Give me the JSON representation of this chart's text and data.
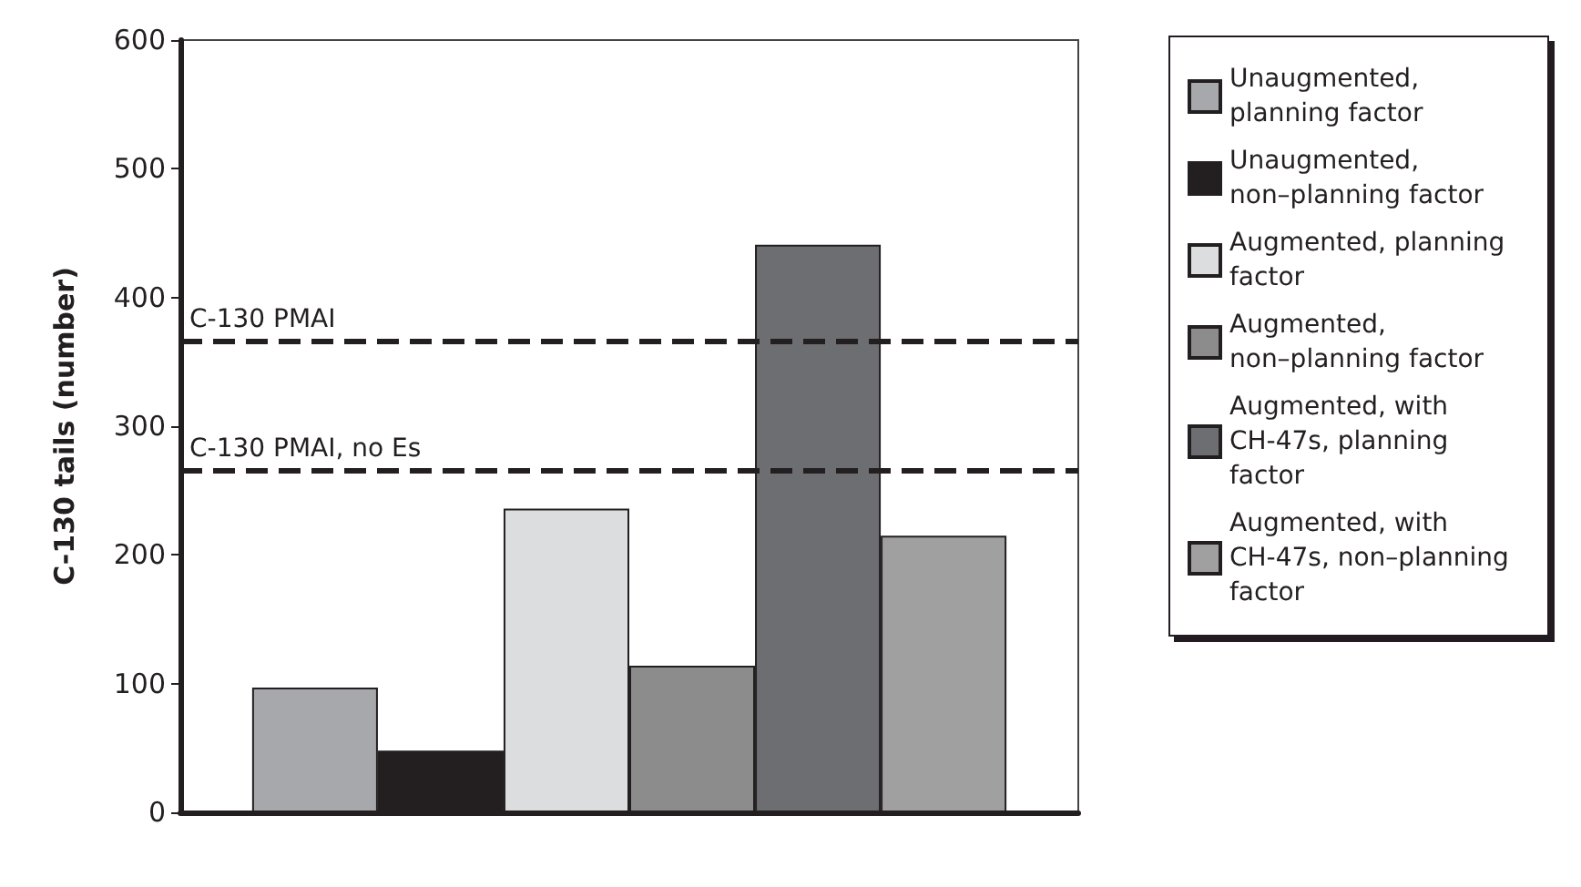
{
  "chart_data": {
    "type": "bar",
    "ylabel": "C-130 tails (number)",
    "categories": [
      null
    ],
    "series": [
      {
        "name": "Unaugmented, planning factor",
        "color": "#a7a8ab",
        "values": [
          97
        ]
      },
      {
        "name": "Unaugmented, non–planning factor",
        "color": "#231f20",
        "values": [
          48
        ]
      },
      {
        "name": "Augmented, planning factor",
        "color": "#dcdddf",
        "values": [
          236
        ]
      },
      {
        "name": "Augmented, non–planning factor",
        "color": "#8c8c8c",
        "values": [
          114
        ]
      },
      {
        "name": "Augmented, with CH-47s, planning factor",
        "color": "#6d6e71",
        "values": [
          441
        ]
      },
      {
        "name": "Augmented, with CH-47s, non–planning factor",
        "color": "#a0a0a0",
        "values": [
          215
        ]
      }
    ],
    "ylim": [
      0,
      600
    ],
    "yticks": [
      0,
      100,
      200,
      300,
      400,
      500,
      600
    ],
    "ref_lines": [
      {
        "axis": "y",
        "value": 366,
        "label": "C-130 PMAI",
        "color": "#231f20",
        "line_style": "dashed"
      },
      {
        "axis": "y",
        "value": 265,
        "label": "C-130 PMAI, no Es",
        "color": "#231f20",
        "line_style": "dashed"
      }
    ],
    "grid": false,
    "legend": "right"
  }
}
